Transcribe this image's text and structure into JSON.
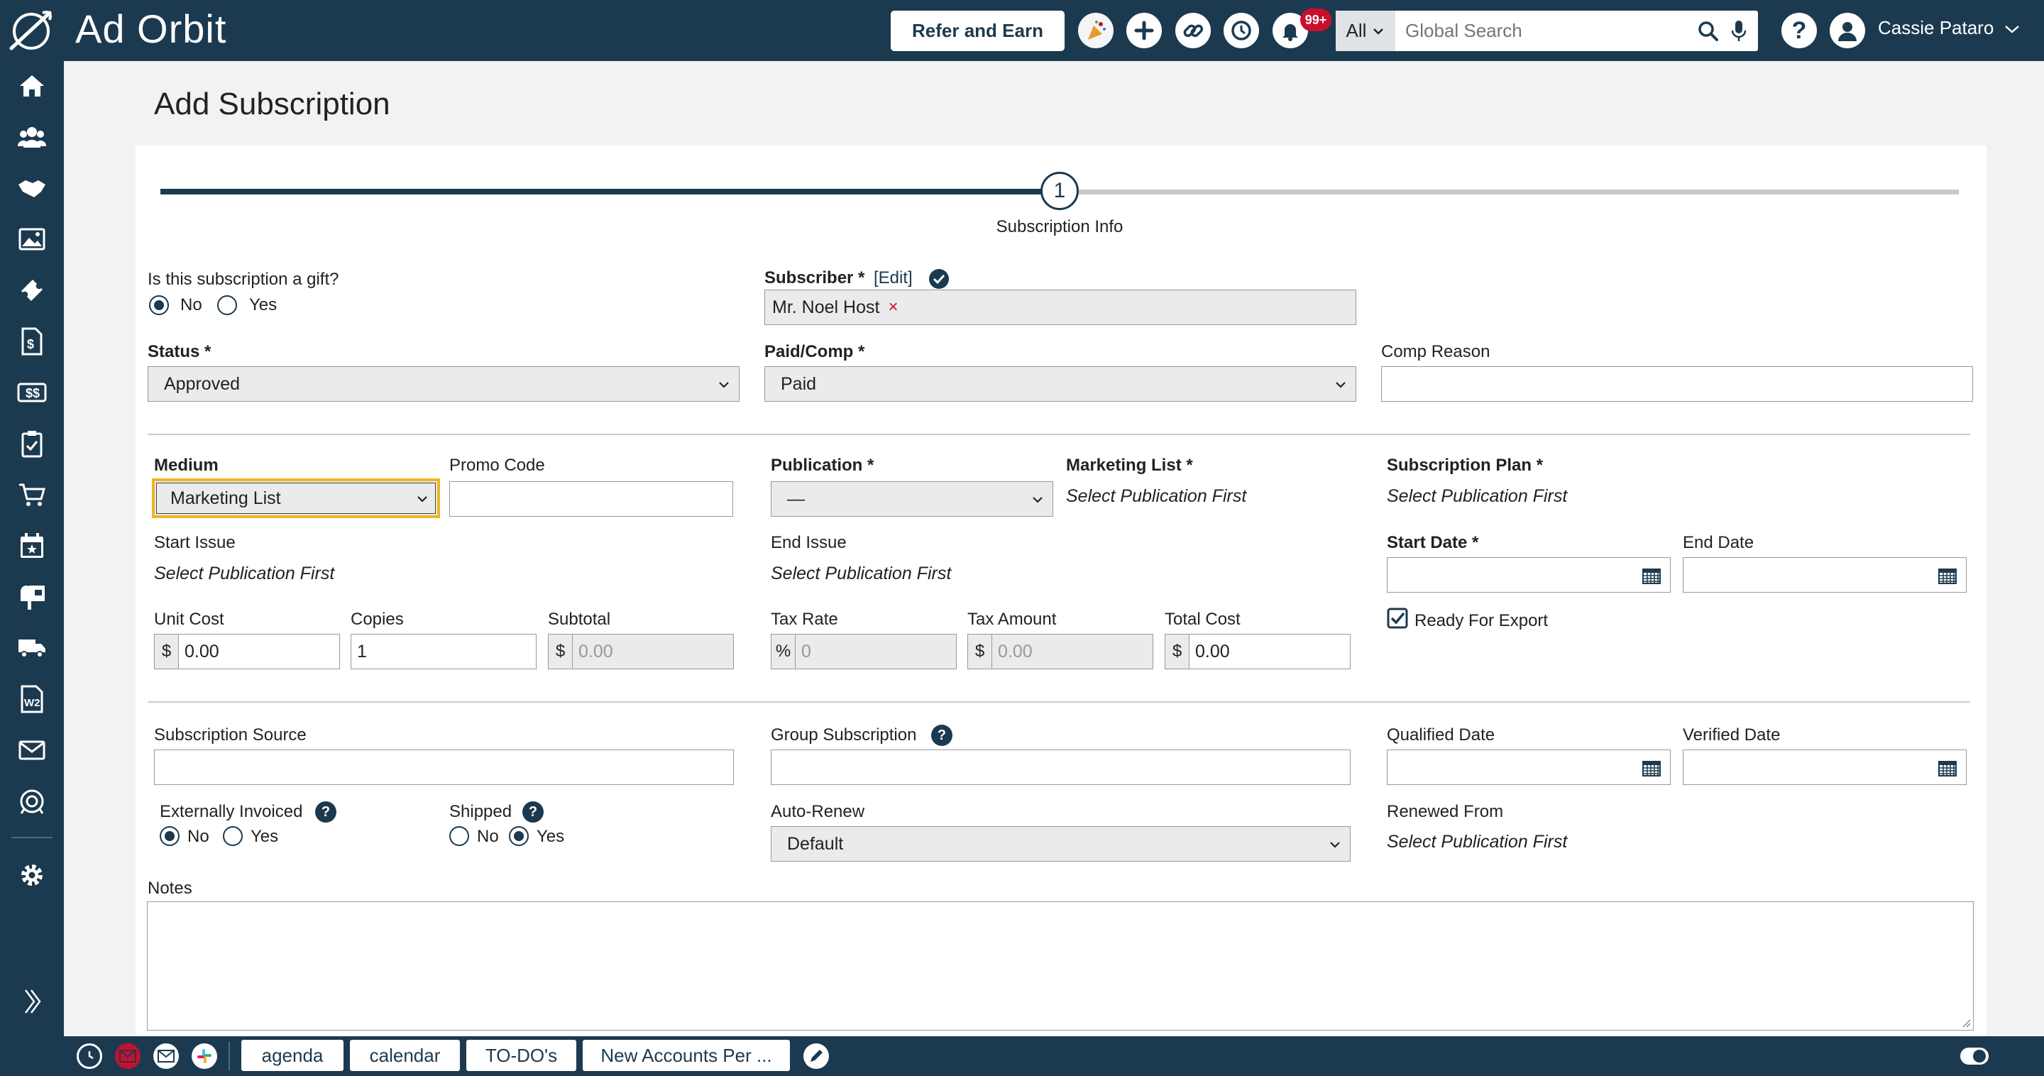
{
  "app": {
    "name": "Ad Orbit"
  },
  "topbar": {
    "refer_label": "Refer and Earn",
    "notif_count": "99+",
    "search_scope": "All",
    "search_placeholder": "Global Search",
    "user_name": "Cassie Pataro"
  },
  "page": {
    "title": "Add Subscription"
  },
  "stepper": {
    "step_number": "1",
    "step_label": "Subscription Info"
  },
  "form": {
    "gift_label": "Is this subscription a gift?",
    "gift_no": "No",
    "gift_yes": "Yes",
    "subscriber_label": "Subscriber *",
    "subscriber_edit": "[Edit]",
    "subscriber_value": "Mr. Noel Host",
    "status_label": "Status *",
    "status_value": "Approved",
    "paidcomp_label": "Paid/Comp *",
    "paidcomp_value": "Paid",
    "comp_reason_label": "Comp Reason",
    "medium_label": "Medium",
    "medium_value": "Marketing List",
    "promo_label": "Promo Code",
    "publication_label": "Publication *",
    "publication_value": "—",
    "marketing_list_label": "Marketing List *",
    "marketing_list_value": "Select Publication First",
    "sub_plan_label": "Subscription Plan *",
    "sub_plan_value": "Select Publication First",
    "start_issue_label": "Start Issue",
    "start_issue_value": "Select Publication First",
    "end_issue_label": "End Issue",
    "end_issue_value": "Select Publication First",
    "start_date_label": "Start Date *",
    "end_date_label": "End Date",
    "unit_cost_label": "Unit Cost",
    "unit_cost_value": "0.00",
    "copies_label": "Copies",
    "copies_value": "1",
    "subtotal_label": "Subtotal",
    "subtotal_value": "0.00",
    "tax_rate_label": "Tax Rate",
    "tax_rate_value": "0",
    "tax_amount_label": "Tax Amount",
    "tax_amount_value": "0.00",
    "total_cost_label": "Total Cost",
    "total_cost_value": "0.00",
    "ready_export_label": "Ready For Export",
    "source_label": "Subscription Source",
    "group_label": "Group Subscription",
    "qualified_label": "Qualified Date",
    "verified_label": "Verified Date",
    "ext_invoiced_label": "Externally Invoiced",
    "shipped_label": "Shipped",
    "no": "No",
    "yes": "Yes",
    "autorenew_label": "Auto-Renew",
    "autorenew_value": "Default",
    "renewed_from_label": "Renewed From",
    "renewed_from_value": "Select Publication First",
    "notes_label": "Notes"
  },
  "bottombar": {
    "tabs": [
      "agenda",
      "calendar",
      "TO-DO's",
      "New Accounts Per ..."
    ]
  },
  "colors": {
    "primary": "#1b3a4f",
    "highlight": "#f0b323",
    "badge": "#c8102e"
  }
}
